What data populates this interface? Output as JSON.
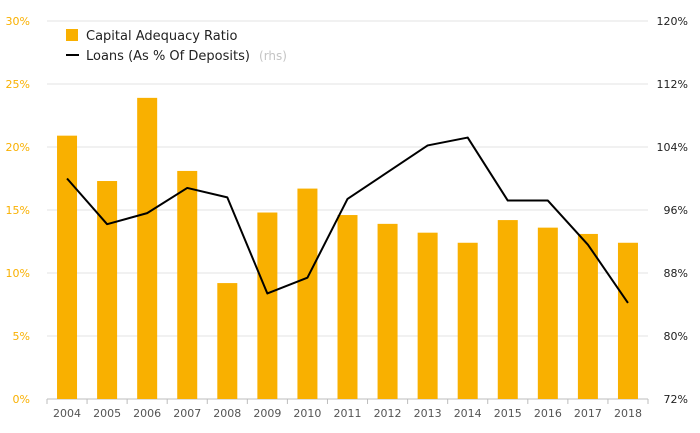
{
  "chart_data": {
    "type": "bar",
    "categories": [
      "2004",
      "2005",
      "2006",
      "2007",
      "2008",
      "2009",
      "2010",
      "2011",
      "2012",
      "2013",
      "2014",
      "2015",
      "2016",
      "2017",
      "2018"
    ],
    "series": [
      {
        "name": "Capital Adequacy Ratio",
        "type": "bar",
        "axis": "left",
        "color": "#f9b000",
        "values": [
          20.9,
          17.3,
          23.9,
          18.1,
          9.2,
          14.8,
          16.7,
          14.6,
          13.9,
          13.2,
          12.4,
          14.2,
          13.6,
          13.1,
          12.4
        ]
      },
      {
        "name": "Loans (As % Of Deposits)",
        "name_suffix": "(rhs)",
        "type": "line",
        "axis": "right",
        "color": "#000000",
        "values": [
          100,
          94.2,
          95.6,
          98.8,
          97.6,
          85.4,
          87.4,
          97.4,
          100.8,
          104.2,
          105.2,
          97.2,
          97.2,
          91.6,
          84.2
        ]
      }
    ],
    "left_axis": {
      "min": 0,
      "max": 30,
      "step": 5,
      "tick_labels": [
        "0%",
        "5%",
        "10%",
        "15%",
        "20%",
        "25%",
        "30%"
      ],
      "color": "#f9b000"
    },
    "right_axis": {
      "min": 72,
      "max": 120,
      "step": 8,
      "tick_labels": [
        "72%",
        "80%",
        "88%",
        "96%",
        "104%",
        "112%",
        "120%"
      ]
    },
    "grid": true,
    "legend_position": "top-left",
    "title": "",
    "xlabel": "",
    "ylabel": ""
  }
}
